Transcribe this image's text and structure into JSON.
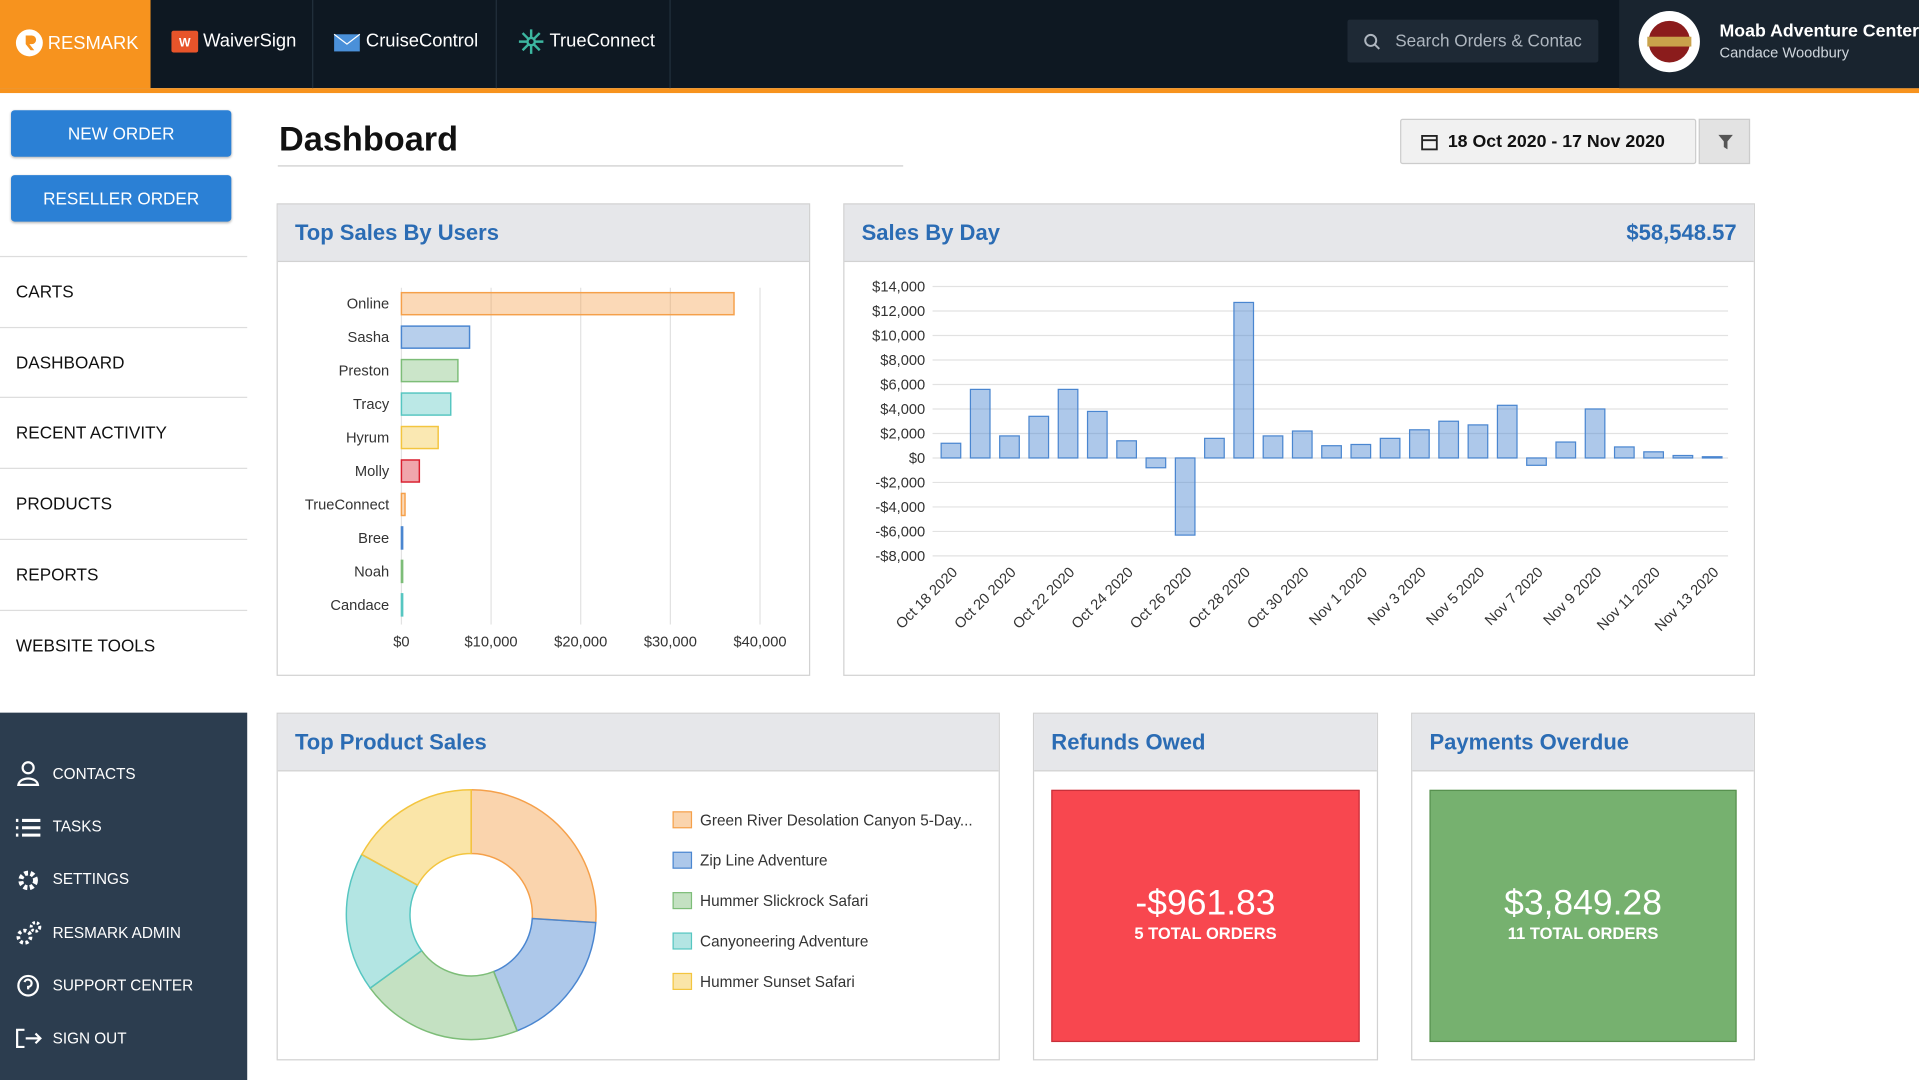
{
  "nav": {
    "brand": "RESMARK",
    "tabs": [
      "WaiverSign",
      "CruiseControl",
      "TrueConnect"
    ],
    "search_placeholder": "Search Orders & Contac",
    "account": {
      "name": "Moab Adventure Center",
      "user": "Candace Woodbury"
    }
  },
  "sidebar": {
    "buttons": [
      "NEW ORDER",
      "RESELLER ORDER"
    ],
    "menu": [
      "CARTS",
      "DASHBOARD",
      "RECENT ACTIVITY",
      "PRODUCTS",
      "REPORTS",
      "WEBSITE TOOLS"
    ],
    "footer_menu": [
      "CONTACTS",
      "TASKS",
      "SETTINGS",
      "RESMARK ADMIN",
      "SUPPORT CENTER",
      "SIGN OUT"
    ]
  },
  "header": {
    "title": "Dashboard",
    "date_range": "18 Oct 2020 - 17 Nov 2020"
  },
  "chart_data": [
    {
      "type": "hbar",
      "title": "Top Sales By Users",
      "categories": [
        "Online",
        "Sasha",
        "Preston",
        "Tracy",
        "Hyrum",
        "Molly",
        "TrueConnect",
        "Bree",
        "Noah",
        "Candace"
      ],
      "values": [
        37100,
        7600,
        6300,
        5500,
        4100,
        2000,
        400,
        100,
        50,
        50
      ],
      "colors": [
        "#f5a04a",
        "#4a86d0",
        "#7dbd78",
        "#56c6c1",
        "#f3c53f",
        "#d9202f",
        "#f5a04a",
        "#4a86d0",
        "#7dbd78",
        "#56c6c1"
      ],
      "xlim": [
        0,
        40000
      ],
      "xticks": [
        {
          "value": 0,
          "label": "$0"
        },
        {
          "value": 10000,
          "label": "$10,000"
        },
        {
          "value": 20000,
          "label": "$20,000"
        },
        {
          "value": 30000,
          "label": "$30,000"
        },
        {
          "value": 40000,
          "label": "$40,000"
        }
      ],
      "grid": true
    },
    {
      "type": "bar",
      "title": "Sales By Day",
      "annotation": "$58,548.57",
      "categories": [
        "Oct 18 2020",
        null,
        "Oct 20 2020",
        null,
        "Oct 22 2020",
        null,
        "Oct 24 2020",
        null,
        "Oct 26 2020",
        null,
        "Oct 28 2020",
        null,
        "Oct 30 2020",
        null,
        "Nov 1 2020",
        null,
        "Nov 3 2020",
        null,
        "Nov 5 2020",
        null,
        "Nov 7 2020",
        null,
        "Nov 9 2020",
        null,
        "Nov 11 2020",
        null,
        "Nov 13 2020"
      ],
      "values": [
        1200,
        5600,
        1800,
        3400,
        5600,
        3800,
        1400,
        -800,
        -6300,
        1600,
        12700,
        1800,
        2200,
        1000,
        1100,
        1600,
        2300,
        3000,
        2700,
        4300,
        -600,
        1300,
        4000,
        900,
        500,
        200,
        100
      ],
      "color": "#4a86d0",
      "ylim": [
        -8000,
        14000
      ],
      "yticks": [
        {
          "value": 14000,
          "label": "$14,000"
        },
        {
          "value": 12000,
          "label": "$12,000"
        },
        {
          "value": 10000,
          "label": "$10,000"
        },
        {
          "value": 8000,
          "label": "$8,000"
        },
        {
          "value": 6000,
          "label": "$6,000"
        },
        {
          "value": 4000,
          "label": "$4,000"
        },
        {
          "value": 2000,
          "label": "$2,000"
        },
        {
          "value": 0,
          "label": "$0"
        },
        {
          "value": -2000,
          "label": "-$2,000"
        },
        {
          "value": -4000,
          "label": "-$4,000"
        },
        {
          "value": -6000,
          "label": "-$6,000"
        },
        {
          "value": -8000,
          "label": "-$8,000"
        }
      ],
      "grid": true
    },
    {
      "type": "donut",
      "title": "Top Product Sales",
      "categories": [
        "Green River Desolation Canyon 5-Day...",
        "Zip Line Adventure",
        "Hummer Slickrock Safari",
        "Canyoneering Adventure",
        "Hummer Sunset Safari"
      ],
      "values": [
        26,
        18,
        21,
        18,
        17
      ],
      "colors": [
        "#f5a04a",
        "#4a86d0",
        "#7dbd78",
        "#56c6c1",
        "#f3c53f"
      ]
    }
  ],
  "refunds": {
    "title": "Refunds Owed",
    "amount": "-$961.83",
    "orders": "5 TOTAL ORDERS"
  },
  "payments": {
    "title": "Payments Overdue",
    "amount": "$3,849.28",
    "orders": "11 TOTAL ORDERS"
  }
}
